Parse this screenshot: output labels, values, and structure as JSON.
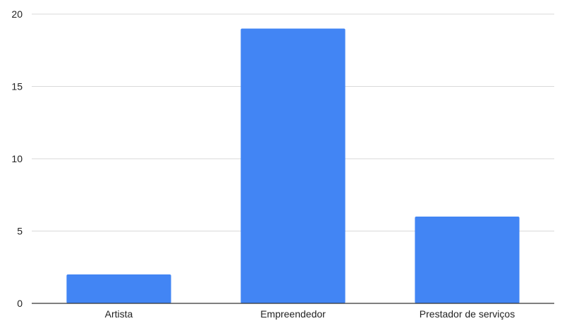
{
  "chart_data": {
    "type": "bar",
    "categories": [
      "Artista",
      "Empreendedor",
      "Prestador de serviços"
    ],
    "values": [
      2,
      19,
      6
    ],
    "title": "",
    "xlabel": "",
    "ylabel": "",
    "ylim": [
      0,
      20
    ],
    "yticks": [
      "0",
      "5",
      "10",
      "15",
      "20"
    ],
    "grid": true,
    "legend": "none",
    "colors": {
      "bar": "#4285f4",
      "grid": "#d9d9d9",
      "axis": "#333333",
      "text": "#222222"
    }
  }
}
